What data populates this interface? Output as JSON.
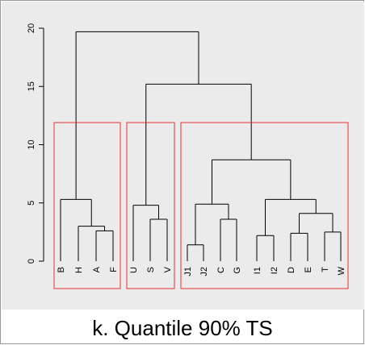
{
  "chart_data": {
    "type": "dendrogram",
    "leaves": [
      "B",
      "H",
      "A",
      "F",
      "U",
      "S",
      "V",
      "J1",
      "J2",
      "C",
      "G",
      "I1",
      "I2",
      "D",
      "E",
      "T",
      "W"
    ],
    "ylim": [
      0,
      20
    ],
    "yticks": [
      "0",
      "5",
      "10",
      "15",
      "20"
    ],
    "yticks_values": [
      0,
      5,
      10,
      15,
      20
    ],
    "merges": [
      {
        "left": "A",
        "right": "F",
        "height": 2.6
      },
      {
        "left": "H",
        "right": [
          "A",
          "F"
        ],
        "height": 3.0
      },
      {
        "left": "B",
        "right": [
          "H",
          "A",
          "F"
        ],
        "height": 5.3
      },
      {
        "left": "S",
        "right": "V",
        "height": 3.6
      },
      {
        "left": "U",
        "right": [
          "S",
          "V"
        ],
        "height": 4.8
      },
      {
        "left": "J1",
        "right": "J2",
        "height": 1.4
      },
      {
        "left": "C",
        "right": "G",
        "height": 3.6
      },
      {
        "left": [
          "J1",
          "J2"
        ],
        "right": [
          "C",
          "G"
        ],
        "height": 4.9
      },
      {
        "left": "I1",
        "right": "I2",
        "height": 2.2
      },
      {
        "left": "D",
        "right": "E",
        "height": 2.4
      },
      {
        "left": "T",
        "right": "W",
        "height": 2.5
      },
      {
        "left": [
          "D",
          "E"
        ],
        "right": [
          "T",
          "W"
        ],
        "height": 4.1
      },
      {
        "left": [
          "I1",
          "I2"
        ],
        "right": [
          "D",
          "E",
          "T",
          "W"
        ],
        "height": 5.3
      },
      {
        "left": [
          "J1",
          "J2",
          "C",
          "G"
        ],
        "right": [
          "I1",
          "I2",
          "D",
          "E",
          "T",
          "W"
        ],
        "height": 8.7
      },
      {
        "left": [
          "U",
          "S",
          "V"
        ],
        "right": [
          "J1",
          "J2",
          "C",
          "G",
          "I1",
          "I2",
          "D",
          "E",
          "T",
          "W"
        ],
        "height": 15.2
      },
      {
        "left": [
          "B",
          "H",
          "A",
          "F"
        ],
        "right": [
          "U",
          "S",
          "V",
          "J1",
          "J2",
          "C",
          "G",
          "I1",
          "I2",
          "D",
          "E",
          "T",
          "W"
        ],
        "height": 19.7
      }
    ],
    "cluster_boxes": [
      {
        "leaves": [
          "B",
          "H",
          "A",
          "F"
        ],
        "top": 11.9
      },
      {
        "leaves": [
          "U",
          "S",
          "V"
        ],
        "top": 11.9
      },
      {
        "leaves": [
          "J1",
          "J2",
          "C",
          "G",
          "I1",
          "I2",
          "D",
          "E",
          "T",
          "W"
        ],
        "top": 11.9
      }
    ],
    "line_color": "#000000",
    "box_color": "#e8322b",
    "background_color": "#ebebeb"
  },
  "caption": "k. Quantile 90% TS"
}
